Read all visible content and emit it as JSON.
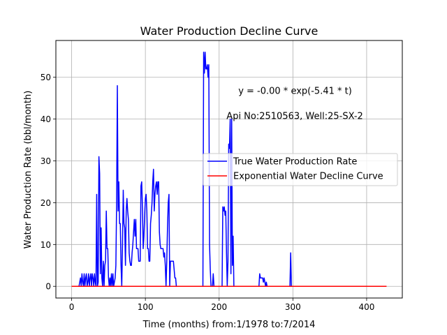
{
  "chart_data": {
    "type": "line",
    "title": "Water Production Decline Curve",
    "xlabel": "Time (months) from:1/1978 to:7/2014",
    "ylabel": "Water Production Rate (bbl/month)",
    "xlim": [
      -21.35,
      448.35
    ],
    "ylim": [
      -2.8,
      58.8
    ],
    "xticks": [
      0,
      100,
      200,
      300,
      400
    ],
    "yticks": [
      0,
      10,
      20,
      30,
      40,
      50
    ],
    "grid": true,
    "legend_position": "center-right",
    "annotations": [
      {
        "text": "y = -0.00 * exp(-5.41 * t)",
        "x": 226,
        "y": 46
      },
      {
        "text": "Api No:2510563, Well:25-SX-2",
        "x": 210,
        "y": 40
      }
    ],
    "series": [
      {
        "name": "True Water Production Rate",
        "color": "#0000ff",
        "points": [
          [
            0,
            0
          ],
          [
            10,
            0
          ],
          [
            11,
            1
          ],
          [
            12,
            2
          ],
          [
            13,
            0
          ],
          [
            14,
            3
          ],
          [
            15,
            1
          ],
          [
            16,
            0
          ],
          [
            17,
            3
          ],
          [
            18,
            0
          ],
          [
            19,
            2
          ],
          [
            20,
            3
          ],
          [
            21,
            0
          ],
          [
            22,
            1
          ],
          [
            23,
            3
          ],
          [
            24,
            0
          ],
          [
            25,
            2
          ],
          [
            26,
            3
          ],
          [
            27,
            0
          ],
          [
            28,
            3
          ],
          [
            29,
            2
          ],
          [
            30,
            0
          ],
          [
            31,
            3
          ],
          [
            32,
            1
          ],
          [
            33,
            0
          ],
          [
            34,
            22
          ],
          [
            35,
            0
          ],
          [
            36,
            1
          ],
          [
            37,
            31
          ],
          [
            38,
            27
          ],
          [
            39,
            3
          ],
          [
            40,
            14
          ],
          [
            41,
            2
          ],
          [
            42,
            0
          ],
          [
            43,
            6
          ],
          [
            44,
            0
          ],
          [
            45,
            5
          ],
          [
            46,
            6
          ],
          [
            47,
            18
          ],
          [
            48,
            9
          ],
          [
            49,
            9
          ],
          [
            50,
            2
          ],
          [
            51,
            0
          ],
          [
            52,
            2
          ],
          [
            53,
            0
          ],
          [
            54,
            3
          ],
          [
            55,
            0
          ],
          [
            56,
            3
          ],
          [
            57,
            0
          ],
          [
            58,
            1
          ],
          [
            59,
            2
          ],
          [
            60,
            5
          ],
          [
            61,
            20
          ],
          [
            62,
            48
          ],
          [
            63,
            18
          ],
          [
            64,
            25
          ],
          [
            65,
            15
          ],
          [
            66,
            15
          ],
          [
            67,
            5
          ],
          [
            68,
            0
          ],
          [
            69,
            10
          ],
          [
            70,
            23
          ],
          [
            71,
            15
          ],
          [
            72,
            14
          ],
          [
            73,
            5
          ],
          [
            74,
            18
          ],
          [
            75,
            21
          ],
          [
            76,
            18
          ],
          [
            77,
            16
          ],
          [
            78,
            8
          ],
          [
            79,
            6
          ],
          [
            80,
            5
          ],
          [
            81,
            5
          ],
          [
            82,
            8
          ],
          [
            83,
            10
          ],
          [
            84,
            13
          ],
          [
            85,
            16
          ],
          [
            86,
            12
          ],
          [
            87,
            16
          ],
          [
            88,
            9
          ],
          [
            89,
            9
          ],
          [
            90,
            9
          ],
          [
            91,
            6
          ],
          [
            92,
            6
          ],
          [
            93,
            6
          ],
          [
            94,
            24
          ],
          [
            95,
            25
          ],
          [
            96,
            19
          ],
          [
            97,
            9
          ],
          [
            98,
            12
          ],
          [
            99,
            17
          ],
          [
            100,
            21
          ],
          [
            101,
            22
          ],
          [
            102,
            18
          ],
          [
            103,
            9
          ],
          [
            104,
            9
          ],
          [
            105,
            6
          ],
          [
            106,
            6
          ],
          [
            107,
            15
          ],
          [
            108,
            17
          ],
          [
            109,
            20
          ],
          [
            110,
            25
          ],
          [
            111,
            28
          ],
          [
            112,
            18
          ],
          [
            113,
            22
          ],
          [
            114,
            24
          ],
          [
            115,
            25
          ],
          [
            116,
            22
          ],
          [
            117,
            25
          ],
          [
            118,
            25
          ],
          [
            119,
            13
          ],
          [
            120,
            10
          ],
          [
            121,
            9
          ],
          [
            122,
            9
          ],
          [
            123,
            9
          ],
          [
            124,
            9
          ],
          [
            125,
            7
          ],
          [
            126,
            8
          ],
          [
            127,
            5
          ],
          [
            128,
            0
          ],
          [
            129,
            6
          ],
          [
            130,
            14
          ],
          [
            131,
            20
          ],
          [
            132,
            22
          ],
          [
            133,
            0
          ],
          [
            134,
            6
          ],
          [
            135,
            6
          ],
          [
            136,
            6
          ],
          [
            137,
            6
          ],
          [
            138,
            6
          ],
          [
            139,
            4
          ],
          [
            140,
            2
          ],
          [
            141,
            2
          ],
          [
            142,
            0
          ],
          [
            143,
            0
          ],
          [
            178,
            0
          ],
          [
            179,
            56
          ],
          [
            180,
            51
          ],
          [
            181,
            56
          ],
          [
            182,
            52
          ],
          [
            183,
            52
          ],
          [
            184,
            53
          ],
          [
            185,
            50
          ],
          [
            186,
            53
          ],
          [
            187,
            10
          ],
          [
            188,
            4
          ],
          [
            189,
            0
          ],
          [
            190,
            0
          ],
          [
            191,
            0
          ],
          [
            192,
            3
          ],
          [
            193,
            0
          ],
          [
            194,
            0
          ],
          [
            200,
            0
          ],
          [
            204,
            0
          ],
          [
            205,
            19
          ],
          [
            206,
            18
          ],
          [
            207,
            19
          ],
          [
            208,
            17
          ],
          [
            209,
            18
          ],
          [
            210,
            8
          ],
          [
            211,
            0
          ],
          [
            212,
            6
          ],
          [
            213,
            34
          ],
          [
            214,
            33
          ],
          [
            215,
            40
          ],
          [
            216,
            3
          ],
          [
            217,
            40
          ],
          [
            218,
            5
          ],
          [
            219,
            12
          ],
          [
            220,
            0
          ],
          [
            221,
            0
          ],
          [
            254,
            0
          ],
          [
            255,
            3
          ],
          [
            256,
            2
          ],
          [
            257,
            2
          ],
          [
            258,
            2
          ],
          [
            259,
            2
          ],
          [
            260,
            1
          ],
          [
            261,
            2
          ],
          [
            262,
            1
          ],
          [
            263,
            0
          ],
          [
            264,
            1
          ],
          [
            265,
            0
          ],
          [
            266,
            0
          ],
          [
            296,
            0
          ],
          [
            297,
            8
          ],
          [
            298,
            0
          ],
          [
            299,
            0
          ],
          [
            300,
            0
          ]
        ]
      },
      {
        "name": "Exponential Water Decline Curve",
        "color": "#ff0000",
        "points": [
          [
            0,
            0
          ],
          [
            427,
            0
          ]
        ]
      }
    ]
  }
}
